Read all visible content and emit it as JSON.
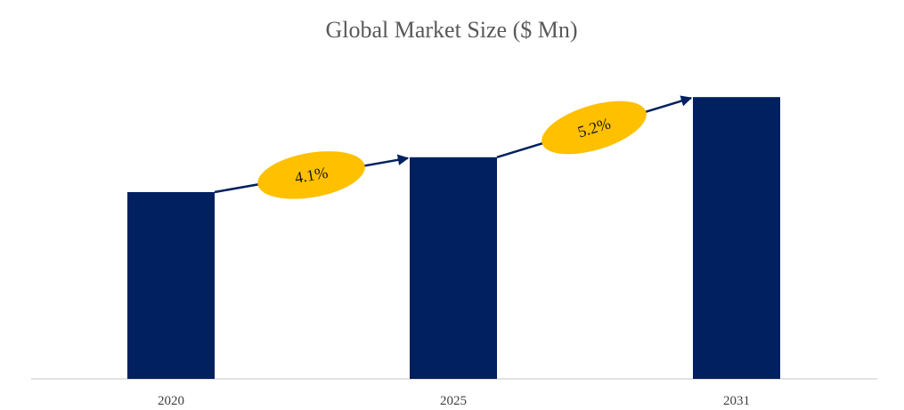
{
  "chart_data": {
    "type": "bar",
    "title": "Global Market Size ($ Mn)",
    "xlabel": "",
    "ylabel": "",
    "categories": [
      "2020",
      "2025",
      "2031"
    ],
    "values": [
      59,
      70,
      89
    ],
    "ylim": [
      0,
      100
    ],
    "grid": false,
    "bar_color": "#002060",
    "annotations": [
      {
        "from": "2020",
        "to": "2025",
        "label": "4.1%",
        "color": "#FFC000"
      },
      {
        "from": "2025",
        "to": "2031",
        "label": "5.2%",
        "color": "#FFC000"
      }
    ]
  }
}
